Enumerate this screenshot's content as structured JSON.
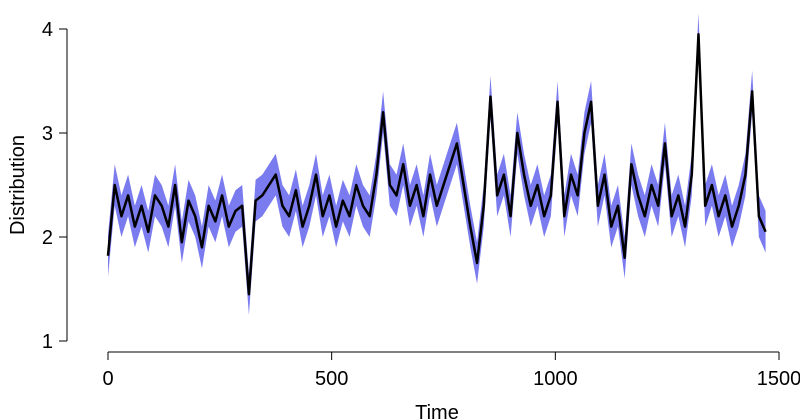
{
  "chart_data": {
    "type": "band-line",
    "xlabel": "Time",
    "ylabel": "Distribution",
    "xlim": [
      0,
      1500
    ],
    "ylim": [
      1,
      4
    ],
    "xticks": [
      0,
      500,
      1000,
      1500
    ],
    "yticks": [
      1,
      2,
      3,
      4
    ],
    "color": "#000000",
    "band_color": "#7b7bf0",
    "x": [
      0,
      15,
      30,
      45,
      60,
      75,
      90,
      105,
      120,
      135,
      150,
      165,
      180,
      195,
      210,
      225,
      240,
      255,
      270,
      285,
      300,
      315,
      330,
      345,
      360,
      375,
      390,
      405,
      420,
      435,
      450,
      465,
      480,
      495,
      510,
      525,
      540,
      555,
      570,
      585,
      600,
      615,
      630,
      645,
      660,
      675,
      690,
      705,
      720,
      735,
      750,
      765,
      780,
      795,
      810,
      825,
      840,
      855,
      870,
      885,
      900,
      915,
      930,
      945,
      960,
      975,
      990,
      1005,
      1020,
      1035,
      1050,
      1065,
      1080,
      1095,
      1110,
      1125,
      1140,
      1155,
      1170,
      1185,
      1200,
      1215,
      1230,
      1245,
      1260,
      1275,
      1290,
      1305,
      1320,
      1335,
      1350,
      1365,
      1380,
      1395,
      1410,
      1425,
      1440,
      1455,
      1470
    ],
    "values": [
      1.82,
      2.5,
      2.2,
      2.4,
      2.1,
      2.3,
      2.05,
      2.4,
      2.3,
      2.1,
      2.5,
      1.95,
      2.35,
      2.2,
      1.9,
      2.3,
      2.15,
      2.4,
      2.1,
      2.25,
      2.3,
      1.45,
      2.35,
      2.4,
      2.5,
      2.6,
      2.3,
      2.2,
      2.45,
      2.1,
      2.3,
      2.6,
      2.2,
      2.4,
      2.1,
      2.35,
      2.2,
      2.5,
      2.3,
      2.2,
      2.6,
      3.2,
      2.5,
      2.4,
      2.7,
      2.3,
      2.5,
      2.2,
      2.6,
      2.3,
      2.5,
      2.7,
      2.9,
      2.5,
      2.1,
      1.75,
      2.3,
      3.35,
      2.4,
      2.6,
      2.2,
      3.0,
      2.6,
      2.3,
      2.5,
      2.2,
      2.4,
      3.3,
      2.2,
      2.6,
      2.4,
      3.0,
      3.3,
      2.3,
      2.6,
      2.1,
      2.3,
      1.8,
      2.7,
      2.4,
      2.2,
      2.5,
      2.3,
      2.9,
      2.2,
      2.4,
      2.1,
      2.6,
      3.95,
      2.3,
      2.5,
      2.2,
      2.4,
      2.1,
      2.3,
      2.6,
      3.4,
      2.2,
      2.05
    ],
    "lower": [
      1.62,
      2.3,
      2.0,
      2.2,
      1.9,
      2.1,
      1.85,
      2.2,
      2.1,
      1.9,
      2.3,
      1.75,
      2.15,
      2.0,
      1.7,
      2.1,
      1.95,
      2.2,
      1.9,
      2.05,
      2.1,
      1.25,
      2.15,
      2.2,
      2.3,
      2.4,
      2.1,
      2.0,
      2.25,
      1.9,
      2.1,
      2.4,
      2.0,
      2.2,
      1.9,
      2.15,
      2.0,
      2.3,
      2.1,
      2.0,
      2.4,
      3.0,
      2.3,
      2.2,
      2.5,
      2.1,
      2.3,
      2.0,
      2.4,
      2.1,
      2.3,
      2.5,
      2.7,
      2.3,
      1.9,
      1.55,
      2.1,
      3.15,
      2.2,
      2.4,
      2.0,
      2.8,
      2.4,
      2.1,
      2.3,
      2.0,
      2.2,
      3.1,
      2.0,
      2.4,
      2.2,
      2.8,
      3.1,
      2.1,
      2.4,
      1.9,
      2.1,
      1.6,
      2.5,
      2.2,
      2.0,
      2.3,
      2.1,
      2.7,
      2.0,
      2.2,
      1.9,
      2.4,
      3.75,
      2.1,
      2.3,
      2.0,
      2.2,
      1.9,
      2.1,
      2.4,
      3.2,
      2.0,
      1.85
    ],
    "upper": [
      2.02,
      2.7,
      2.4,
      2.6,
      2.3,
      2.5,
      2.25,
      2.6,
      2.5,
      2.3,
      2.7,
      2.15,
      2.55,
      2.4,
      2.1,
      2.5,
      2.35,
      2.6,
      2.3,
      2.45,
      2.5,
      1.65,
      2.55,
      2.6,
      2.7,
      2.8,
      2.5,
      2.4,
      2.65,
      2.3,
      2.5,
      2.8,
      2.4,
      2.6,
      2.3,
      2.55,
      2.4,
      2.7,
      2.5,
      2.4,
      2.8,
      3.4,
      2.7,
      2.6,
      2.9,
      2.5,
      2.7,
      2.4,
      2.8,
      2.5,
      2.7,
      2.9,
      3.1,
      2.7,
      2.3,
      1.95,
      2.5,
      3.55,
      2.6,
      2.8,
      2.4,
      3.2,
      2.8,
      2.5,
      2.7,
      2.4,
      2.6,
      3.5,
      2.4,
      2.8,
      2.6,
      3.2,
      3.5,
      2.5,
      2.8,
      2.3,
      2.5,
      2.0,
      2.9,
      2.6,
      2.4,
      2.7,
      2.5,
      3.1,
      2.4,
      2.6,
      2.3,
      2.8,
      4.15,
      2.5,
      2.7,
      2.4,
      2.6,
      2.3,
      2.5,
      2.8,
      3.6,
      2.4,
      2.25
    ]
  }
}
